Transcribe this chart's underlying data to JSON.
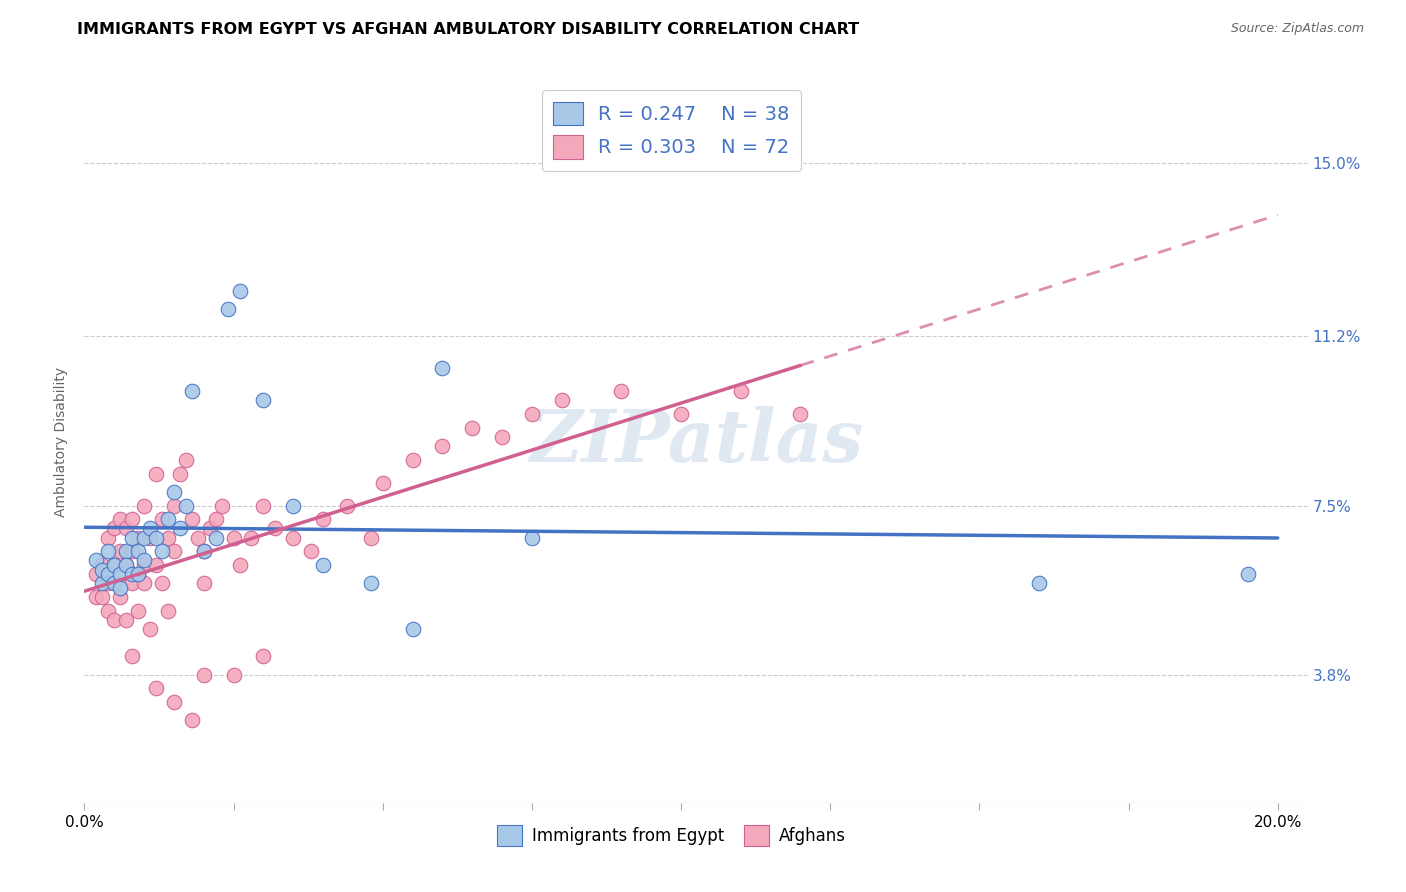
{
  "title": "IMMIGRANTS FROM EGYPT VS AFGHAN AMBULATORY DISABILITY CORRELATION CHART",
  "source": "Source: ZipAtlas.com",
  "ylabel": "Ambulatory Disability",
  "ytick_labels": [
    "3.8%",
    "7.5%",
    "11.2%",
    "15.0%"
  ],
  "ytick_values": [
    0.038,
    0.075,
    0.112,
    0.15
  ],
  "xlim": [
    0.0,
    0.205
  ],
  "ylim": [
    0.01,
    0.168
  ],
  "legend_blue_r": "0.247",
  "legend_blue_n": "38",
  "legend_pink_r": "0.303",
  "legend_pink_n": "72",
  "blue_color": "#a8c8e8",
  "pink_color": "#f4a8bc",
  "line_blue": "#4472c4",
  "line_pink": "#d06090",
  "watermark": "ZIPatlas",
  "blue_scatter_x": [
    0.002,
    0.003,
    0.003,
    0.004,
    0.004,
    0.005,
    0.005,
    0.006,
    0.006,
    0.007,
    0.007,
    0.008,
    0.008,
    0.009,
    0.009,
    0.01,
    0.01,
    0.011,
    0.012,
    0.013,
    0.014,
    0.015,
    0.016,
    0.017,
    0.018,
    0.02,
    0.022,
    0.024,
    0.026,
    0.03,
    0.035,
    0.04,
    0.048,
    0.055,
    0.06,
    0.075,
    0.16,
    0.195
  ],
  "blue_scatter_y": [
    0.063,
    0.058,
    0.061,
    0.06,
    0.065,
    0.062,
    0.058,
    0.06,
    0.057,
    0.065,
    0.062,
    0.06,
    0.068,
    0.065,
    0.06,
    0.063,
    0.068,
    0.07,
    0.068,
    0.065,
    0.072,
    0.078,
    0.07,
    0.075,
    0.1,
    0.065,
    0.068,
    0.118,
    0.122,
    0.098,
    0.075,
    0.062,
    0.058,
    0.048,
    0.105,
    0.068,
    0.058,
    0.06
  ],
  "pink_scatter_x": [
    0.002,
    0.002,
    0.003,
    0.003,
    0.004,
    0.004,
    0.004,
    0.005,
    0.005,
    0.005,
    0.006,
    0.006,
    0.006,
    0.007,
    0.007,
    0.007,
    0.008,
    0.008,
    0.008,
    0.009,
    0.009,
    0.009,
    0.01,
    0.01,
    0.01,
    0.011,
    0.011,
    0.012,
    0.012,
    0.013,
    0.013,
    0.014,
    0.014,
    0.015,
    0.015,
    0.016,
    0.017,
    0.018,
    0.019,
    0.02,
    0.02,
    0.021,
    0.022,
    0.023,
    0.025,
    0.026,
    0.028,
    0.03,
    0.032,
    0.035,
    0.038,
    0.04,
    0.044,
    0.048,
    0.05,
    0.055,
    0.06,
    0.065,
    0.07,
    0.075,
    0.08,
    0.09,
    0.1,
    0.11,
    0.12,
    0.015,
    0.02,
    0.008,
    0.012,
    0.025,
    0.03,
    0.018
  ],
  "pink_scatter_y": [
    0.06,
    0.055,
    0.062,
    0.055,
    0.058,
    0.068,
    0.052,
    0.062,
    0.07,
    0.05,
    0.065,
    0.072,
    0.055,
    0.062,
    0.07,
    0.05,
    0.058,
    0.065,
    0.072,
    0.06,
    0.068,
    0.052,
    0.062,
    0.058,
    0.075,
    0.068,
    0.048,
    0.082,
    0.062,
    0.072,
    0.058,
    0.068,
    0.052,
    0.075,
    0.065,
    0.082,
    0.085,
    0.072,
    0.068,
    0.065,
    0.058,
    0.07,
    0.072,
    0.075,
    0.068,
    0.062,
    0.068,
    0.075,
    0.07,
    0.068,
    0.065,
    0.072,
    0.075,
    0.068,
    0.08,
    0.085,
    0.088,
    0.092,
    0.09,
    0.095,
    0.098,
    0.1,
    0.095,
    0.1,
    0.095,
    0.032,
    0.038,
    0.042,
    0.035,
    0.038,
    0.042,
    0.028
  ],
  "grid_color": "#cccccc",
  "background_color": "#ffffff",
  "title_fontsize": 11.5,
  "axis_label_fontsize": 10,
  "tick_fontsize": 11
}
